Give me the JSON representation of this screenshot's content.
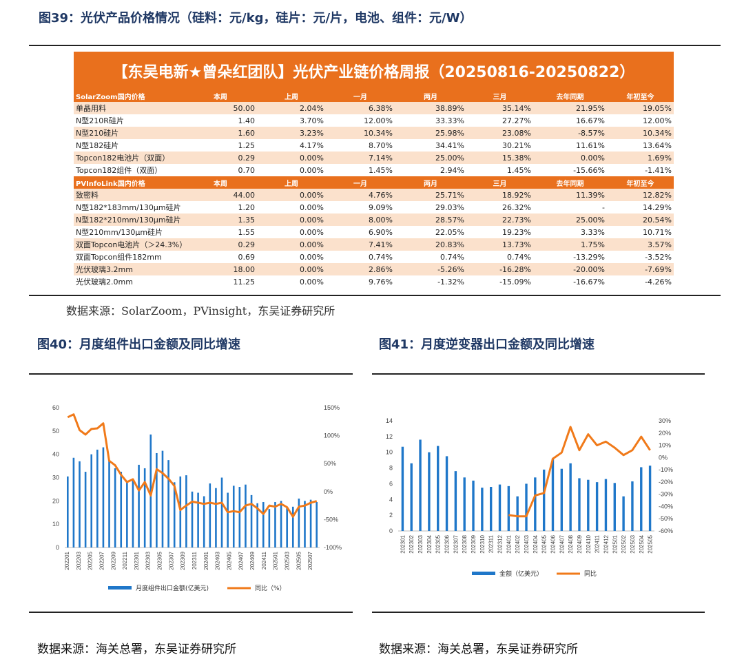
{
  "fig39": {
    "title": "图39：光伏产品价格情况（硅料：元/kg，硅片：元/片，电池、组件：元/W）",
    "banner": "【东吴电新★曾朵红团队】光伏产业链价格周报（20250816-20250822）",
    "source": "数据来源：SolarZoom，PVinsight，东吴证券研究所",
    "table": {
      "section1": [
        "SolarZoom国内价格",
        "本周",
        "上周",
        "一月",
        "两月",
        "三月",
        "去年同期",
        "年初至今"
      ],
      "rows1": [
        [
          "单晶用料",
          "50.00",
          "2.04%",
          "6.38%",
          "38.89%",
          "35.14%",
          "21.95%",
          "19.05%"
        ],
        [
          "N型210R硅片",
          "1.40",
          "3.70%",
          "12.00%",
          "33.33%",
          "27.27%",
          "16.67%",
          "12.00%"
        ],
        [
          "N型210硅片",
          "1.60",
          "3.23%",
          "10.34%",
          "25.98%",
          "23.08%",
          "-8.57%",
          "10.34%"
        ],
        [
          "N型182硅片",
          "1.25",
          "4.17%",
          "8.70%",
          "34.41%",
          "30.21%",
          "11.61%",
          "13.64%"
        ],
        [
          "Topcon182电池片（双面）",
          "0.29",
          "0.00%",
          "7.14%",
          "25.00%",
          "15.38%",
          "0.00%",
          "1.69%"
        ],
        [
          "Topcon182组件（双面）",
          "0.70",
          "0.00%",
          "1.45%",
          "2.94%",
          "1.45%",
          "-15.66%",
          "-1.41%"
        ]
      ],
      "section2": [
        "PVInfoLink国内价格",
        "本周",
        "上周",
        "一月",
        "两月",
        "三月",
        "去年同期",
        "年初至今"
      ],
      "rows2": [
        [
          "致密料",
          "44.00",
          "0.00%",
          "4.76%",
          "25.71%",
          "18.92%",
          "11.39%",
          "12.82%"
        ],
        [
          "N型182*183mm/130μm硅片",
          "1.20",
          "0.00%",
          "9.09%",
          "29.03%",
          "26.32%",
          "-",
          "14.29%"
        ],
        [
          "N型182*210mm/130μm硅片",
          "1.35",
          "0.00%",
          "8.00%",
          "28.57%",
          "22.73%",
          "25.00%",
          "20.54%"
        ],
        [
          "N型210mm/130μm硅片",
          "1.55",
          "0.00%",
          "6.90%",
          "22.05%",
          "19.23%",
          "3.33%",
          "10.71%"
        ],
        [
          "双面Topcon电池片（＞24.3%）",
          "0.29",
          "0.00%",
          "7.41%",
          "20.83%",
          "13.73%",
          "1.75%",
          "3.57%"
        ],
        [
          "双面Topcon组件182mm",
          "0.69",
          "0.00%",
          "0.74%",
          "0.74%",
          "0.74%",
          "-13.29%",
          "-3.52%"
        ],
        [
          "光伏玻璃3.2mm",
          "18.00",
          "0.00%",
          "2.86%",
          "-5.26%",
          "-16.28%",
          "-20.00%",
          "-7.69%"
        ],
        [
          "光伏玻璃2.0mm",
          "11.25",
          "0.00%",
          "9.76%",
          "-1.32%",
          "-15.09%",
          "-16.67%",
          "-4.26%"
        ]
      ]
    }
  },
  "fig40": {
    "title": "图40：月度组件出口金额及同比增速",
    "source": "数据来源：海关总署，东吴证券研究所"
  },
  "fig41": {
    "title": "图41：月度逆变器出口金额及同比增速",
    "source": "数据来源：海关总署，东吴证券研究所"
  },
  "colors": {
    "orange": "#e9701d",
    "light_orange": "#fbe1cc",
    "bar_blue": "#1f77c9",
    "line_orange": "#f07a1a",
    "title_navy": "#1f3864"
  },
  "chart_data": [
    {
      "type": "bar+line",
      "x_tick_labels": [
        "202201",
        "202203",
        "202205",
        "202207",
        "202209",
        "202211",
        "202301",
        "202303",
        "202305",
        "202307",
        "202309",
        "202311",
        "202401",
        "202403",
        "202405",
        "202407",
        "202409",
        "202411",
        "202501",
        "202503",
        "202505",
        "202507"
      ],
      "x": [
        "202201",
        "202202",
        "202203",
        "202204",
        "202205",
        "202206",
        "202207",
        "202208",
        "202209",
        "202210",
        "202211",
        "202212",
        "202301",
        "202302",
        "202303",
        "202304",
        "202305",
        "202306",
        "202307",
        "202308",
        "202309",
        "202310",
        "202311",
        "202312",
        "202401",
        "202402",
        "202403",
        "202404",
        "202405",
        "202406",
        "202407",
        "202408",
        "202409",
        "202410",
        "202411",
        "202412",
        "202501",
        "202502",
        "202503",
        "202504",
        "202505",
        "202506",
        "202507"
      ],
      "series": [
        {
          "name": "月度组件出口金额(亿美元)",
          "axis": "left",
          "values": [
            30.5,
            38.5,
            37,
            32.5,
            40,
            42,
            43,
            37.5,
            34,
            32.5,
            28,
            29,
            35.5,
            34,
            48.5,
            40.5,
            41.5,
            37.5,
            28,
            30.5,
            31,
            24,
            23.5,
            22,
            27.5,
            25.5,
            30,
            23.5,
            26.5,
            26,
            27,
            22.5,
            19,
            19.5,
            16.5,
            19.5,
            20,
            17,
            17.5,
            21,
            20,
            20.5,
            19.5
          ]
        },
        {
          "name": "同比（%）",
          "axis": "right",
          "values": [
            133,
            138,
            110,
            102,
            112,
            113,
            122,
            55,
            47,
            30,
            17,
            22,
            2,
            17,
            -7,
            40,
            33,
            23,
            10,
            -33,
            -25,
            -18,
            -20,
            -22,
            -20,
            -22,
            -20,
            -37,
            -35,
            -37,
            -25,
            -22,
            -30,
            -40,
            -25,
            -27,
            -22,
            -28,
            -45,
            -27,
            -25,
            -20,
            -17
          ]
        }
      ],
      "ylim_left": [
        0,
        60
      ],
      "yticks_left": [
        0,
        10,
        20,
        30,
        40,
        50,
        60
      ],
      "ylim_right": [
        -100,
        150
      ],
      "ytick_labels_right": [
        "-100%",
        "-50%",
        "0%",
        "50%",
        "100%",
        "150%"
      ],
      "legend": "bottom"
    },
    {
      "type": "bar+line",
      "x": [
        "202301",
        "202302",
        "202303",
        "202304",
        "202305",
        "202306",
        "202307",
        "202308",
        "202309",
        "202310",
        "202311",
        "202312",
        "202401",
        "202402",
        "202403",
        "202404",
        "202405",
        "202406",
        "202407",
        "202408",
        "202409",
        "202410",
        "202411",
        "202412",
        "202501",
        "202502",
        "202503",
        "202504",
        "202505"
      ],
      "series": [
        {
          "name": "金额（亿美元）",
          "axis": "left",
          "values": [
            10.7,
            8.6,
            11.6,
            10,
            10.8,
            9.5,
            7.6,
            6.8,
            6.4,
            5.5,
            5.6,
            5.9,
            5.7,
            4.4,
            6,
            6.8,
            7.8,
            9.2,
            7.9,
            8.6,
            6.7,
            6.5,
            6.2,
            6.6,
            6.1,
            4.4,
            6.3,
            8.1,
            8.3
          ]
        },
        {
          "name": "同比",
          "axis": "right",
          "values": [
            null,
            null,
            null,
            null,
            null,
            null,
            null,
            null,
            null,
            null,
            null,
            null,
            -47,
            -48,
            -48,
            -31,
            -29,
            -1,
            4,
            25,
            6,
            19,
            10,
            13,
            8,
            2,
            6,
            17,
            6
          ]
        }
      ],
      "ylim_left": [
        0,
        14
      ],
      "yticks_left": [
        0,
        2,
        4,
        6,
        8,
        10,
        12,
        14
      ],
      "ylim_right": [
        -60,
        30
      ],
      "ytick_labels_right": [
        "-60%",
        "-50%",
        "-40%",
        "-30%",
        "-20%",
        "-10%",
        "0%",
        "10%",
        "20%",
        "30%"
      ],
      "legend": "bottom"
    }
  ]
}
